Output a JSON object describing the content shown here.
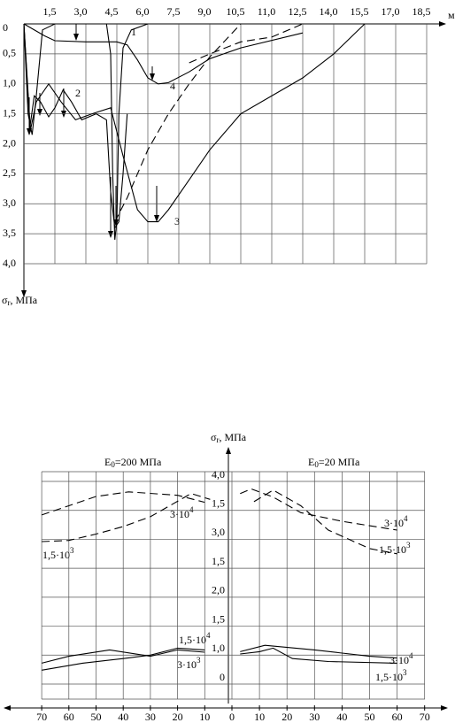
{
  "chart_data": [
    {
      "type": "line",
      "ylabel": {
        "symbol": "σ",
        "sub": "r",
        "unit": ", МПа"
      },
      "xunit": "м",
      "xlim": [
        0,
        18.5
      ],
      "xticks": [
        {
          "value": 1.5,
          "label": "1,5"
        },
        {
          "value": 3.0,
          "label": "3,0"
        },
        {
          "value": 4.5,
          "label": "4,5"
        },
        {
          "value": 6.0,
          "label": "6,0"
        },
        {
          "value": 7.5,
          "label": "7,5"
        },
        {
          "value": 9.0,
          "label": "9,0"
        },
        {
          "value": 10.5,
          "label": "10,5"
        },
        {
          "value": 11.0,
          "label": "11,0"
        },
        {
          "value": 12.5,
          "label": "12,5"
        },
        {
          "value": 14.0,
          "label": "14,0"
        },
        {
          "value": 15.5,
          "label": "15,5"
        },
        {
          "value": 17.0,
          "label": "17,0"
        },
        {
          "value": 18.5,
          "label": "18,5"
        }
      ],
      "ylim": [
        0,
        4
      ],
      "yticks": [
        0,
        {
          "value": 0.5,
          "label": "0,5"
        },
        {
          "value": 1.0,
          "label": "1,0"
        },
        {
          "value": 1.5,
          "label": "1,5"
        },
        {
          "value": 2.0,
          "label": "2,0"
        },
        {
          "value": 2.5,
          "label": "2,5"
        },
        {
          "value": 3.0,
          "label": "3,0"
        },
        {
          "value": 3.5,
          "label": "3,5"
        },
        {
          "value": 4.0,
          "label": "4,0"
        }
      ],
      "grid": true,
      "series": [
        {
          "label": "1",
          "dash": false,
          "x": [
            0,
            0.2,
            0.4,
            0.6,
            0.9,
            1.5,
            3,
            4,
            4.2,
            4.3,
            4.4,
            4.5,
            4.6,
            4.8,
            5.2,
            6
          ],
          "values": [
            0,
            1.5,
            1.85,
            1.2,
            0.1,
            0,
            0,
            0,
            0.5,
            2.5,
            3.6,
            3.3,
            1.5,
            0.4,
            0.1,
            0
          ]
        },
        {
          "label": "2",
          "dash": false,
          "x": [
            0,
            0.3,
            0.5,
            0.8,
            1.2,
            1.5,
            1.9,
            2.3,
            2.8,
            3.5,
            4.0,
            4.2,
            4.4,
            4.6,
            4.8,
            5.0
          ],
          "values": [
            0,
            1.7,
            1.2,
            1.3,
            1.55,
            1.4,
            1.1,
            1.3,
            1.6,
            1.5,
            1.6,
            2.8,
            3.4,
            3.3,
            2.5,
            1.5
          ]
        },
        {
          "label": "3",
          "dash": false,
          "x": [
            0,
            0.3,
            0.6,
            1.2,
            1.8,
            2.5,
            3.3,
            4.2,
            4.8,
            5.5,
            6.0,
            6.5,
            7.0,
            8.0,
            9.0,
            10.5,
            12.5,
            14.0,
            15.5
          ],
          "values": [
            0,
            1.8,
            1.3,
            1.0,
            1.3,
            1.6,
            1.5,
            1.4,
            2.2,
            3.1,
            3.3,
            3.3,
            3.1,
            2.6,
            2.1,
            1.5,
            0.9,
            0.5,
            0
          ]
        },
        {
          "label": "4",
          "dash": false,
          "x": [
            0,
            1,
            1.5,
            3,
            4.5,
            5,
            5.5,
            6,
            6.5,
            7,
            8,
            9,
            10.5,
            12.5
          ],
          "values": [
            0,
            0.2,
            0.28,
            0.3,
            0.3,
            0.35,
            0.6,
            0.9,
            1.0,
            0.98,
            0.8,
            0.58,
            0.4,
            0.15
          ]
        },
        {
          "dash": true,
          "x": [
            4.4,
            5,
            6,
            7,
            8,
            9,
            10.5
          ],
          "values": [
            3.3,
            2.9,
            2.1,
            1.5,
            1.0,
            0.55,
            0
          ]
        },
        {
          "dash": true,
          "x": [
            8,
            9,
            10.5,
            11,
            12.5
          ],
          "values": [
            0.65,
            0.5,
            0.3,
            0.22,
            0
          ]
        }
      ]
    },
    {
      "type": "line",
      "ylabel": {
        "symbol": "σ",
        "sub": "r",
        "unit": ", МПа"
      },
      "yticks": [
        {
          "value": 4.0,
          "label": "4,0"
        },
        {
          "value": 1.5,
          "label": "1,5"
        },
        {
          "value": 3.0,
          "label": "3,0"
        },
        {
          "value": 1.5,
          "label": "1,5"
        },
        {
          "value": 2.0,
          "label": "2,0"
        },
        {
          "value": 1.5,
          "label": "1,5"
        },
        {
          "value": 1.0,
          "label": "1,0"
        },
        0
      ],
      "grid": true,
      "panels": [
        {
          "title": {
            "text": "E",
            "sub": "0",
            "rest": "=200 МПа"
          },
          "xticks": [
            70,
            60,
            50,
            40,
            30,
            20,
            10
          ],
          "series": [
            {
              "label": {
                "text": "3·10",
                "sup": "4"
              },
              "dash": true,
              "x": [
                70,
                60,
                50,
                38,
                20,
                10
              ],
              "values": [
                3.42,
                3.58,
                3.74,
                3.82,
                3.76,
                3.64
              ]
            },
            {
              "label": {
                "text": "1,5·10",
                "sup": "3"
              },
              "dash": true,
              "x": [
                70,
                60,
                50,
                40,
                30,
                15,
                8
              ],
              "values": [
                2.96,
                2.98,
                3.09,
                3.22,
                3.39,
                3.79,
                3.69
              ]
            },
            {
              "label": {
                "text": "1,5·10",
                "sup": "4"
              },
              "dash": false,
              "x": [
                70,
                60,
                45,
                30,
                20,
                10
              ],
              "values": [
                0.86,
                0.98,
                1.09,
                0.98,
                1.09,
                1.05
              ]
            },
            {
              "label": {
                "text": "3·10",
                "sup": "3"
              },
              "dash": false,
              "x": [
                70,
                55,
                40,
                30,
                20,
                10
              ],
              "values": [
                0.74,
                0.86,
                0.94,
                1.0,
                1.12,
                1.09
              ]
            }
          ]
        },
        {
          "title": {
            "text": "E",
            "sub": "0",
            "rest": "=20 МПа"
          },
          "xticks": [
            0,
            10,
            20,
            30,
            40,
            50,
            60,
            70
          ],
          "series": [
            {
              "label": {
                "text": "3·10",
                "sup": "4"
              },
              "dash": true,
              "x": [
                3,
                7,
                15,
                25,
                40,
                60
              ],
              "values": [
                3.79,
                3.87,
                3.73,
                3.46,
                3.31,
                3.16
              ]
            },
            {
              "label": {
                "text": "1,5·10",
                "sup": "3"
              },
              "dash": true,
              "x": [
                8,
                15,
                25,
                35,
                50,
                60
              ],
              "values": [
                3.65,
                3.85,
                3.58,
                3.16,
                2.84,
                2.75
              ]
            },
            {
              "label": {
                "text": "3·10",
                "sup": "4"
              },
              "dash": false,
              "x": [
                3,
                12,
                30,
                50,
                60
              ],
              "values": [
                1.06,
                1.17,
                1.09,
                0.98,
                0.95
              ]
            },
            {
              "label": {
                "text": "1,5·10",
                "sup": "3"
              },
              "dash": false,
              "x": [
                3,
                10,
                15,
                22,
                35,
                60
              ],
              "values": [
                1.02,
                1.06,
                1.12,
                0.94,
                0.89,
                0.86
              ]
            }
          ]
        }
      ]
    }
  ]
}
